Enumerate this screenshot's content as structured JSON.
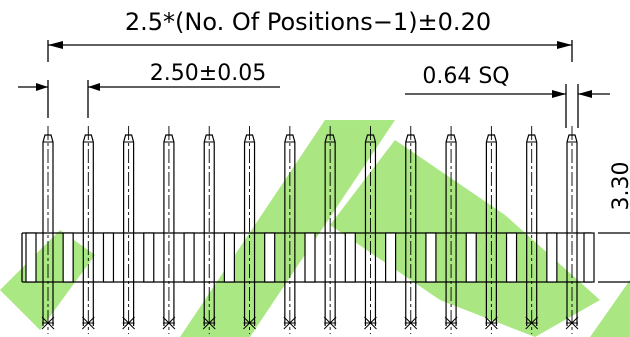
{
  "drawing": {
    "overall_dimension": "2.5*(No. Of Positions−1)±0.20",
    "pitch_dimension": "2.50±0.05",
    "pin_size_dimension": "0.64 SQ",
    "height_dimension": "3.30"
  },
  "connector": {
    "pin_count": 14,
    "pin_pitch_mm": 2.5
  },
  "colors": {
    "line": "#000000",
    "watermark": "#8ee05a"
  }
}
